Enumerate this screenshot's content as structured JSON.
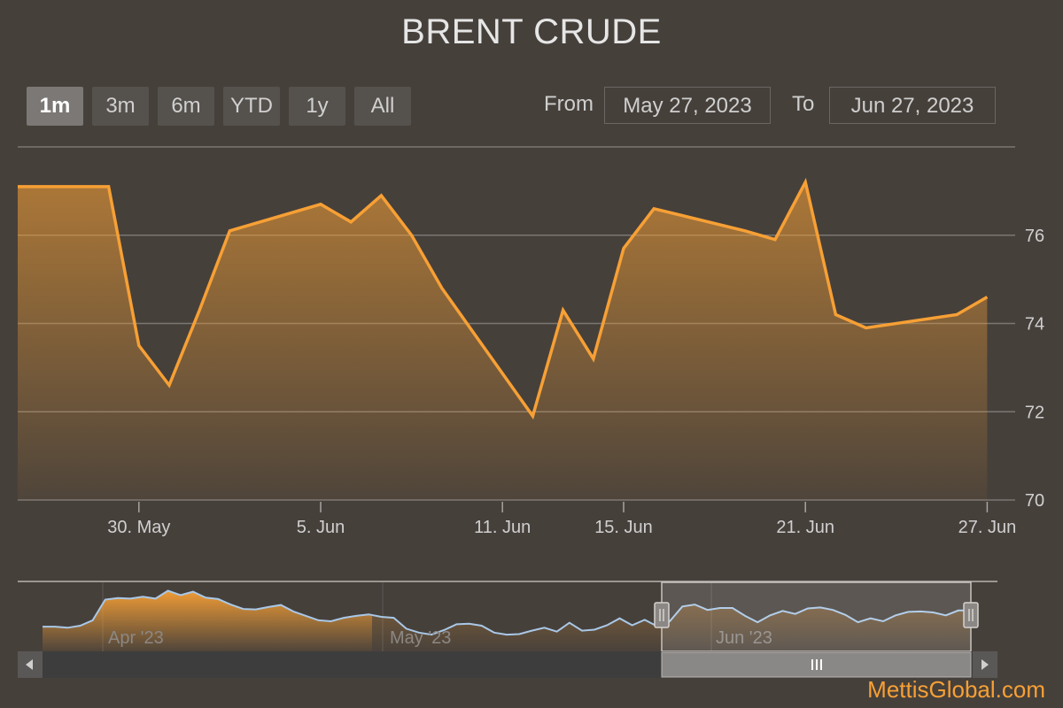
{
  "title": "BRENT CRUDE",
  "range_selector": {
    "buttons": [
      {
        "label": "1m",
        "active": true
      },
      {
        "label": "3m",
        "active": false
      },
      {
        "label": "6m",
        "active": false
      },
      {
        "label": "YTD",
        "active": false
      },
      {
        "label": "1y",
        "active": false
      },
      {
        "label": "All",
        "active": false
      }
    ],
    "from_label": "From",
    "from_value": "May 27, 2023",
    "to_label": "To",
    "to_value": "Jun 27, 2023"
  },
  "chart_data": {
    "type": "area",
    "x": [
      "2023-05-26",
      "2023-05-29",
      "2023-05-30",
      "2023-05-31",
      "2023-06-01",
      "2023-06-02",
      "2023-06-05",
      "2023-06-06",
      "2023-06-07",
      "2023-06-08",
      "2023-06-09",
      "2023-06-12",
      "2023-06-13",
      "2023-06-14",
      "2023-06-15",
      "2023-06-16",
      "2023-06-19",
      "2023-06-20",
      "2023-06-21",
      "2023-06-22",
      "2023-06-23",
      "2023-06-26",
      "2023-06-27"
    ],
    "series": [
      {
        "values": [
          77.1,
          77.1,
          73.5,
          72.6,
          74.3,
          76.1,
          76.7,
          76.3,
          76.9,
          76.0,
          74.8,
          71.9,
          74.3,
          73.2,
          75.7,
          76.6,
          76.1,
          75.9,
          77.2,
          74.2,
          73.9,
          74.2,
          74.6
        ]
      }
    ],
    "color": "#f7a035",
    "ylim": [
      70,
      78
    ],
    "yticks": [
      70,
      72,
      74,
      76
    ],
    "xtick_labels": [
      {
        "date": "2023-05-30",
        "label": "30. May"
      },
      {
        "date": "2023-06-05",
        "label": "5. Jun"
      },
      {
        "date": "2023-06-11",
        "label": "11. Jun"
      },
      {
        "date": "2023-06-15",
        "label": "15. Jun"
      },
      {
        "date": "2023-06-21",
        "label": "21. Jun"
      },
      {
        "date": "2023-06-27",
        "label": "27. Jun"
      }
    ],
    "navigator": {
      "labels": [
        "Apr '23",
        "May '23",
        "Jun '23"
      ],
      "series": [
        71,
        71,
        70.8,
        71.2,
        72.3,
        76.5,
        76.8,
        76.7,
        77.1,
        76.7,
        78.3,
        77.4,
        78.1,
        76.9,
        76.6,
        75.5,
        74.6,
        74.5,
        75,
        75.4,
        74.1,
        73.2,
        72.3,
        72.1,
        72.8,
        73.2,
        73.5,
        73,
        72.8,
        70.6,
        69.8,
        69.4,
        70.3,
        71.5,
        71.6,
        71.2,
        69.8,
        69.4,
        69.5,
        70.2,
        70.8,
        70,
        71.8,
        70.2,
        70.4,
        71.3,
        72.7,
        71.3,
        72.4,
        71.1,
        72.1,
        75.1,
        75.5,
        74.4,
        74.8,
        74.8,
        73.2,
        71.9,
        73.3,
        74.2,
        73.6,
        74.7,
        74.9,
        74.4,
        73.4,
        71.9,
        72.7,
        72.1,
        73.3,
        74,
        74.1,
        73.9,
        73.3,
        74.3,
        74.3
      ]
    }
  },
  "footer": "MettisGlobal.com"
}
